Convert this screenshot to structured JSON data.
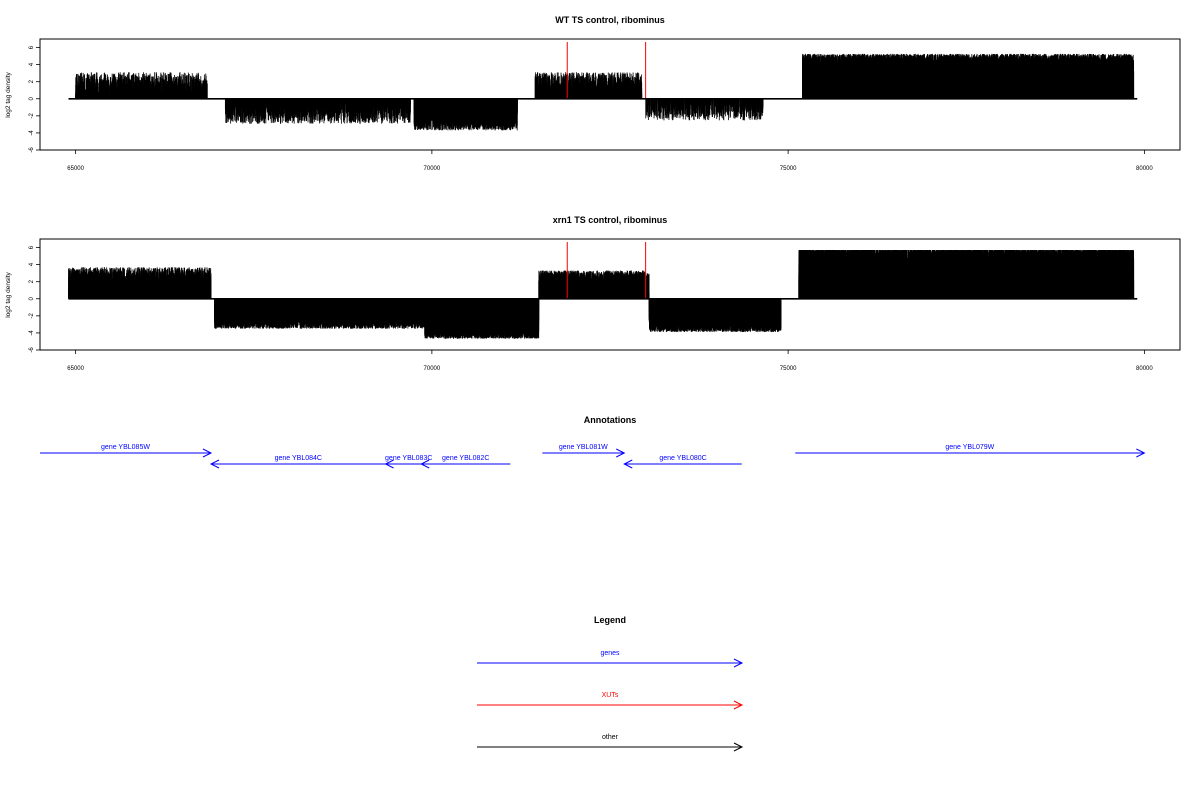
{
  "chart_data": [
    {
      "type": "bar",
      "title": "WT TS control, ribominus",
      "ylabel": "log2 tag density",
      "xlim": [
        64500,
        80500
      ],
      "ylim": [
        -6,
        7
      ],
      "xticks": [
        "65000",
        "70000",
        "75000",
        "80000"
      ],
      "yticks": [
        "6",
        "4",
        "2",
        "0",
        "-2",
        "-4",
        "-6"
      ],
      "xut_markers": [
        71900,
        73000
      ],
      "baseline": {
        "from": 64900,
        "to": 79900
      },
      "regions": [
        {
          "from": 65000,
          "to": 66850,
          "sign": 1,
          "scale": 1.6,
          "density": 0.28
        },
        {
          "from": 67100,
          "to": 69700,
          "sign": -1,
          "scale": 1.5,
          "density": 0.28
        },
        {
          "from": 69750,
          "to": 71200,
          "sign": -1,
          "scale": 1.9,
          "density": 0.55
        },
        {
          "from": 71450,
          "to": 72950,
          "sign": 1,
          "scale": 1.6,
          "density": 0.32
        },
        {
          "from": 73000,
          "to": 74650,
          "sign": -1,
          "scale": 1.3,
          "density": 0.22
        },
        {
          "from": 75200,
          "to": 79850,
          "sign": 1,
          "scale": 2.7,
          "density": 0.8
        }
      ]
    },
    {
      "type": "bar",
      "title": "xrn1 TS control, ribominus",
      "ylabel": "log2 tag density",
      "xlim": [
        64500,
        80500
      ],
      "ylim": [
        -6,
        7
      ],
      "xticks": [
        "65000",
        "70000",
        "75000",
        "80000"
      ],
      "yticks": [
        "6",
        "4",
        "2",
        "0",
        "-2",
        "-4",
        "-6"
      ],
      "xut_markers": [
        71900,
        73000
      ],
      "baseline": {
        "from": 64900,
        "to": 79900
      },
      "regions": [
        {
          "from": 64900,
          "to": 66900,
          "sign": 1,
          "scale": 1.9,
          "density": 0.45
        },
        {
          "from": 66950,
          "to": 69900,
          "sign": -1,
          "scale": 1.8,
          "density": 0.7
        },
        {
          "from": 69900,
          "to": 71500,
          "sign": -1,
          "scale": 2.4,
          "density": 0.9
        },
        {
          "from": 71500,
          "to": 73050,
          "sign": 1,
          "scale": 1.7,
          "density": 0.55
        },
        {
          "from": 73050,
          "to": 74900,
          "sign": -1,
          "scale": 2.0,
          "density": 0.75
        },
        {
          "from": 75150,
          "to": 79850,
          "sign": 1,
          "scale": 3.1,
          "density": 0.95
        }
      ]
    }
  ],
  "annotations": {
    "title": "Annotations",
    "color": "#0000ff",
    "genes": [
      {
        "label": "gene YBL085W",
        "start": 64500,
        "end": 66900,
        "strand": "+",
        "row": 0
      },
      {
        "label": "gene YBL084C",
        "start": 66900,
        "end": 69350,
        "strand": "-",
        "row": 1
      },
      {
        "label": "gene YBL083C",
        "start": 69350,
        "end": 70000,
        "strand": "-",
        "row": 1
      },
      {
        "label": "gene YBL082C",
        "start": 69850,
        "end": 71100,
        "strand": "-",
        "row": 1
      },
      {
        "label": "gene YBL081W",
        "start": 71550,
        "end": 72700,
        "strand": "+",
        "row": 0
      },
      {
        "label": "gene YBL080C",
        "start": 72700,
        "end": 74350,
        "strand": "-",
        "row": 1
      },
      {
        "label": "gene YBL079W",
        "start": 75100,
        "end": 80000,
        "strand": "+",
        "row": 0
      }
    ]
  },
  "legend": {
    "title": "Legend",
    "items": [
      {
        "label": "genes",
        "color": "#0000ff"
      },
      {
        "label": "XUTs",
        "color": "#ff0000"
      },
      {
        "label": "other",
        "color": "#000000"
      }
    ]
  },
  "colors": {
    "bars": "#000000",
    "xut": "#ff0000",
    "axis": "#000000"
  }
}
